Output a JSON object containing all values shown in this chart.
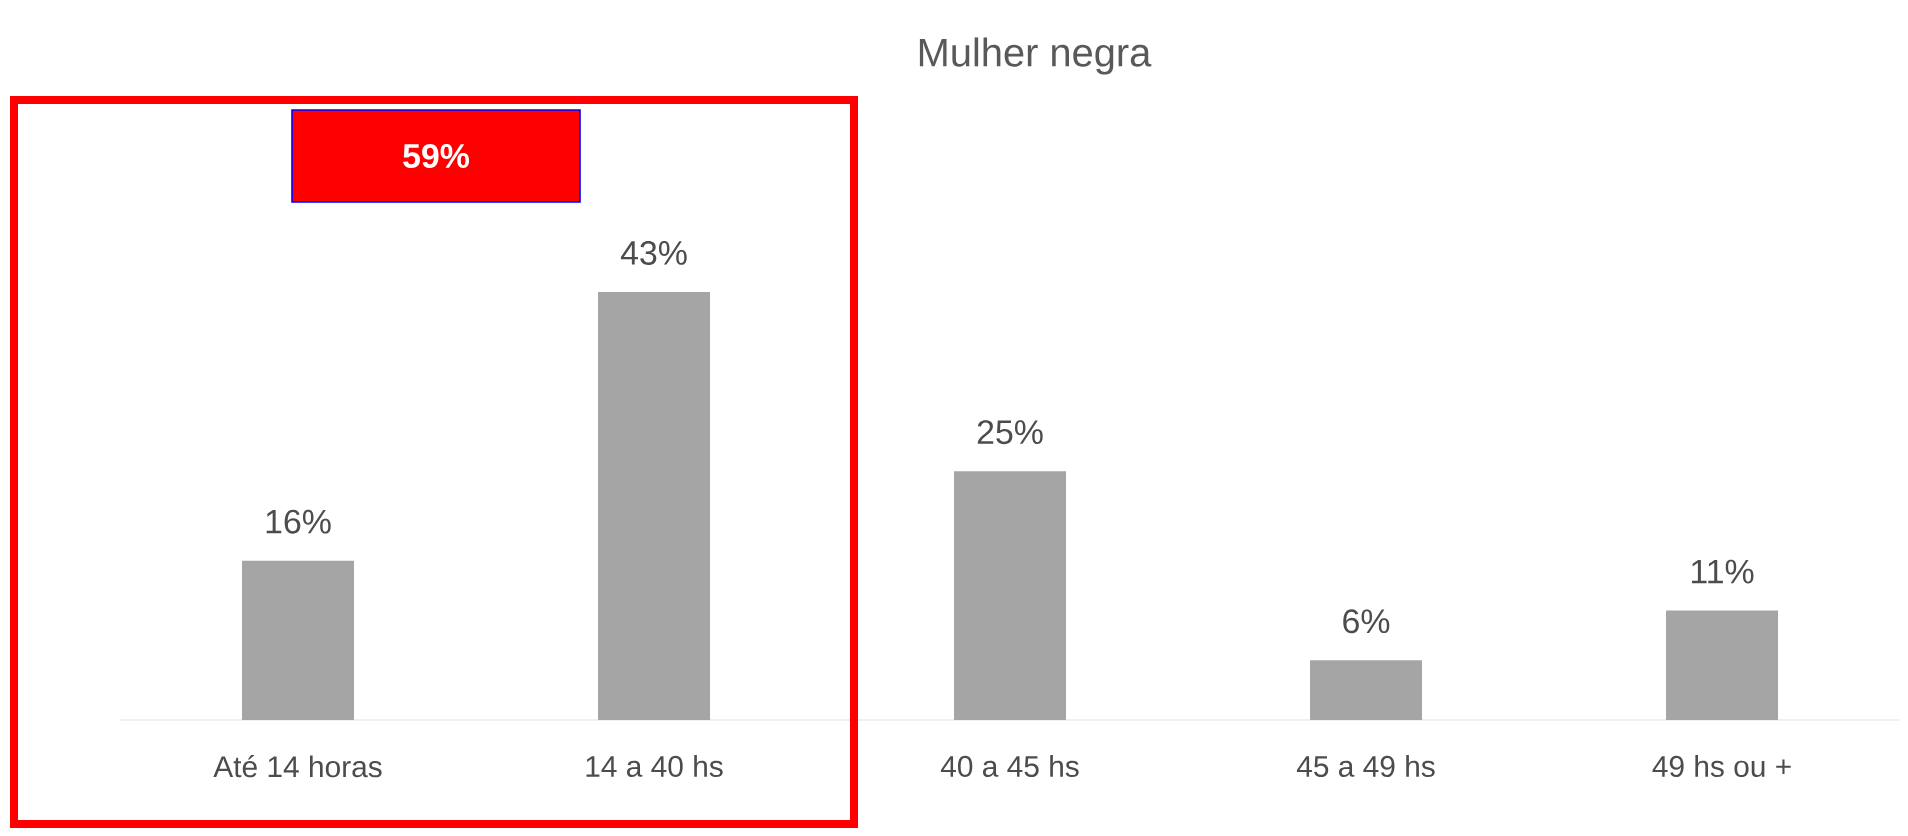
{
  "chart_data": {
    "type": "bar",
    "title": "Mulher negra",
    "categories": [
      "Até 14 horas",
      "14 a 40 hs",
      "40 a 45 hs",
      "45 a 49 hs",
      "49 hs ou +"
    ],
    "values": [
      16,
      43,
      25,
      6,
      11
    ],
    "value_labels": [
      "16%",
      "43%",
      "25%",
      "6%",
      "11%"
    ],
    "color": "#a5a5a5",
    "annotations": [
      "59%"
    ]
  }
}
